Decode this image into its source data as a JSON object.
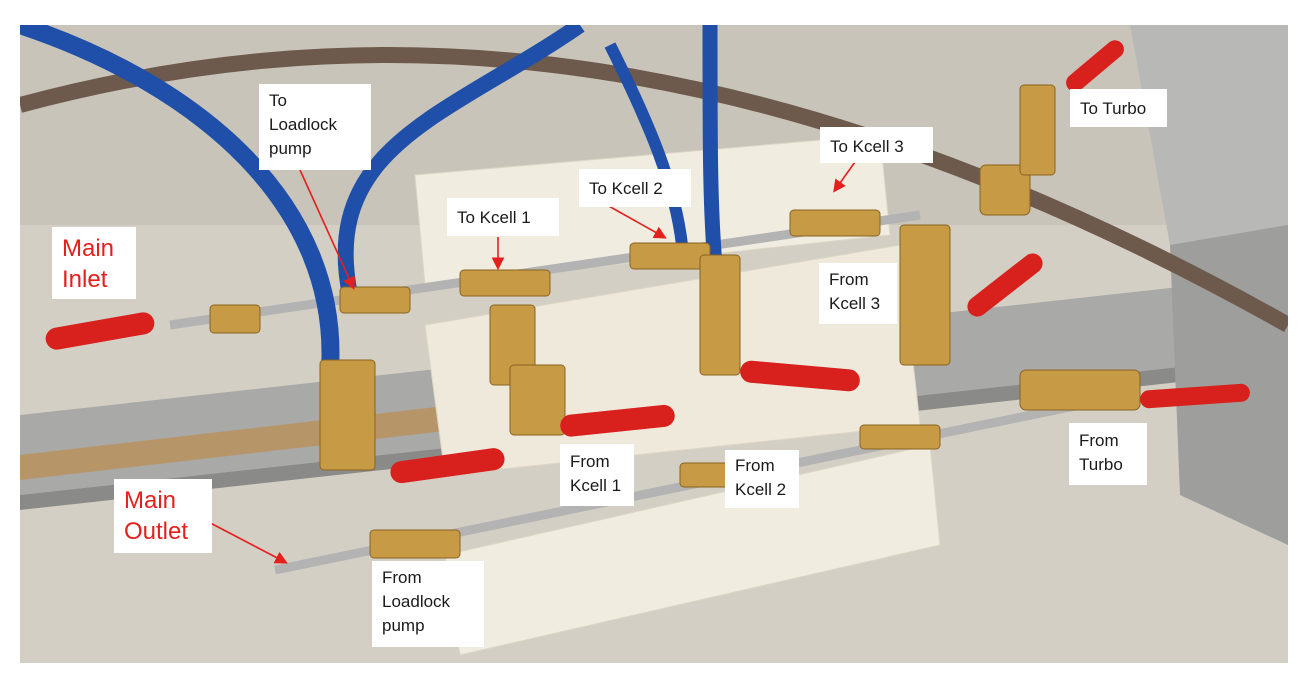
{
  "colors": {
    "red_label_text": "#e3201c",
    "black_label_text": "#1a1a1a",
    "arrow": "#e3201c",
    "blue_tube": "#1f4fa8",
    "brass": "#c79a45",
    "valve_handle": "#d8201c",
    "fixture": "#f1ece0"
  },
  "labels": {
    "main_inlet": "Main\nInlet",
    "main_outlet": "Main\nOutlet",
    "to_loadlock_pump": "To\nLoadlock\npump",
    "to_kcell_1": "To Kcell 1",
    "to_kcell_2": "To Kcell 2",
    "to_kcell_3": "To Kcell 3",
    "to_turbo": "To Turbo",
    "from_kcell_3": "From\nKcell 3",
    "from_turbo": "From\nTurbo",
    "from_kcell_1": "From\nKcell 1",
    "from_kcell_2": "From\nKcell 2",
    "from_loadlock_pump": "From\nLoadlock\npump"
  }
}
